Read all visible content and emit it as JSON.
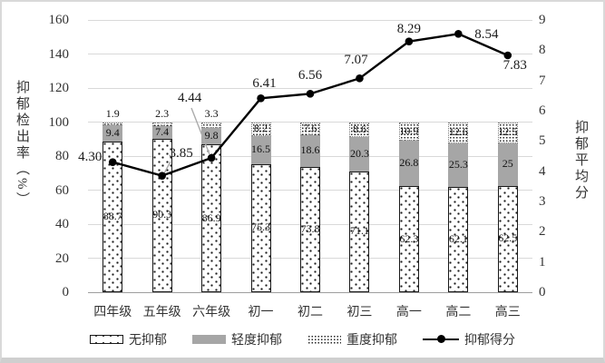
{
  "chart_data": {
    "type": "bar",
    "subtype": "stacked-bar-with-line",
    "title": "",
    "categories": [
      "四年级",
      "五年级",
      "六年级",
      "初一",
      "初二",
      "初三",
      "高一",
      "高二",
      "高三"
    ],
    "series": [
      {
        "name": "无抑郁",
        "type": "bar",
        "stack": "rate",
        "values": [
          88.7,
          90.3,
          86.9,
          75.3,
          73.8,
          71.1,
          62.3,
          62.1,
          62.5
        ],
        "labels": [
          "88.7",
          "90.3",
          "86.9",
          "75.3",
          "73.8",
          "71.1",
          "62.3",
          "62.1",
          "62.5"
        ]
      },
      {
        "name": "轻度抑郁",
        "type": "bar",
        "stack": "rate",
        "values": [
          9.4,
          7.4,
          9.8,
          16.5,
          18.6,
          20.3,
          26.8,
          25.3,
          25
        ],
        "labels": [
          "9.4",
          "7.4",
          "9.8",
          "16.5",
          "18.6",
          "20.3",
          "26.8",
          "25.3",
          "25"
        ]
      },
      {
        "name": "重度抑郁",
        "type": "bar",
        "stack": "rate",
        "values": [
          1.9,
          2.3,
          3.3,
          8.2,
          7.6,
          8.6,
          10.9,
          12.6,
          12.5
        ],
        "labels": [
          "1.9",
          "2.3",
          "3.3",
          "8.2",
          "7.6",
          "8.6",
          "10.9",
          "12.6",
          "12.5"
        ]
      },
      {
        "name": "抑郁得分",
        "type": "line",
        "axis": "right",
        "values": [
          4.3,
          3.85,
          4.44,
          6.41,
          6.56,
          7.07,
          8.29,
          8.54,
          7.83
        ],
        "labels": [
          "4.30",
          "3.85",
          "4.44",
          "6.41",
          "6.56",
          "7.07",
          "8.29",
          "8.54",
          "7.83"
        ]
      }
    ],
    "left_axis": {
      "label": "抑郁检出率（%）",
      "min": 0,
      "max": 160,
      "step": 20,
      "ticks": [
        "0",
        "20",
        "40",
        "60",
        "80",
        "100",
        "120",
        "140",
        "160"
      ]
    },
    "right_axis": {
      "label": "抑郁平均分",
      "min": 0,
      "max": 9,
      "step": 1,
      "ticks": [
        "0",
        "1",
        "2",
        "3",
        "4",
        "5",
        "6",
        "7",
        "8",
        "9"
      ]
    },
    "legend": [
      {
        "label": "无抑郁",
        "swatch": "dotted-white-box"
      },
      {
        "label": "轻度抑郁",
        "swatch": "gray-box"
      },
      {
        "label": "重度抑郁",
        "swatch": "dense-dots"
      },
      {
        "label": "抑郁得分",
        "swatch": "line-marker"
      }
    ],
    "layout_hints": {
      "grid": "horizontal",
      "legend_position": "bottom"
    },
    "colors": {
      "mild_fill": "#a6a6a6",
      "line": "#000000",
      "grid": "#d9d9d9",
      "text": "#333333"
    }
  }
}
